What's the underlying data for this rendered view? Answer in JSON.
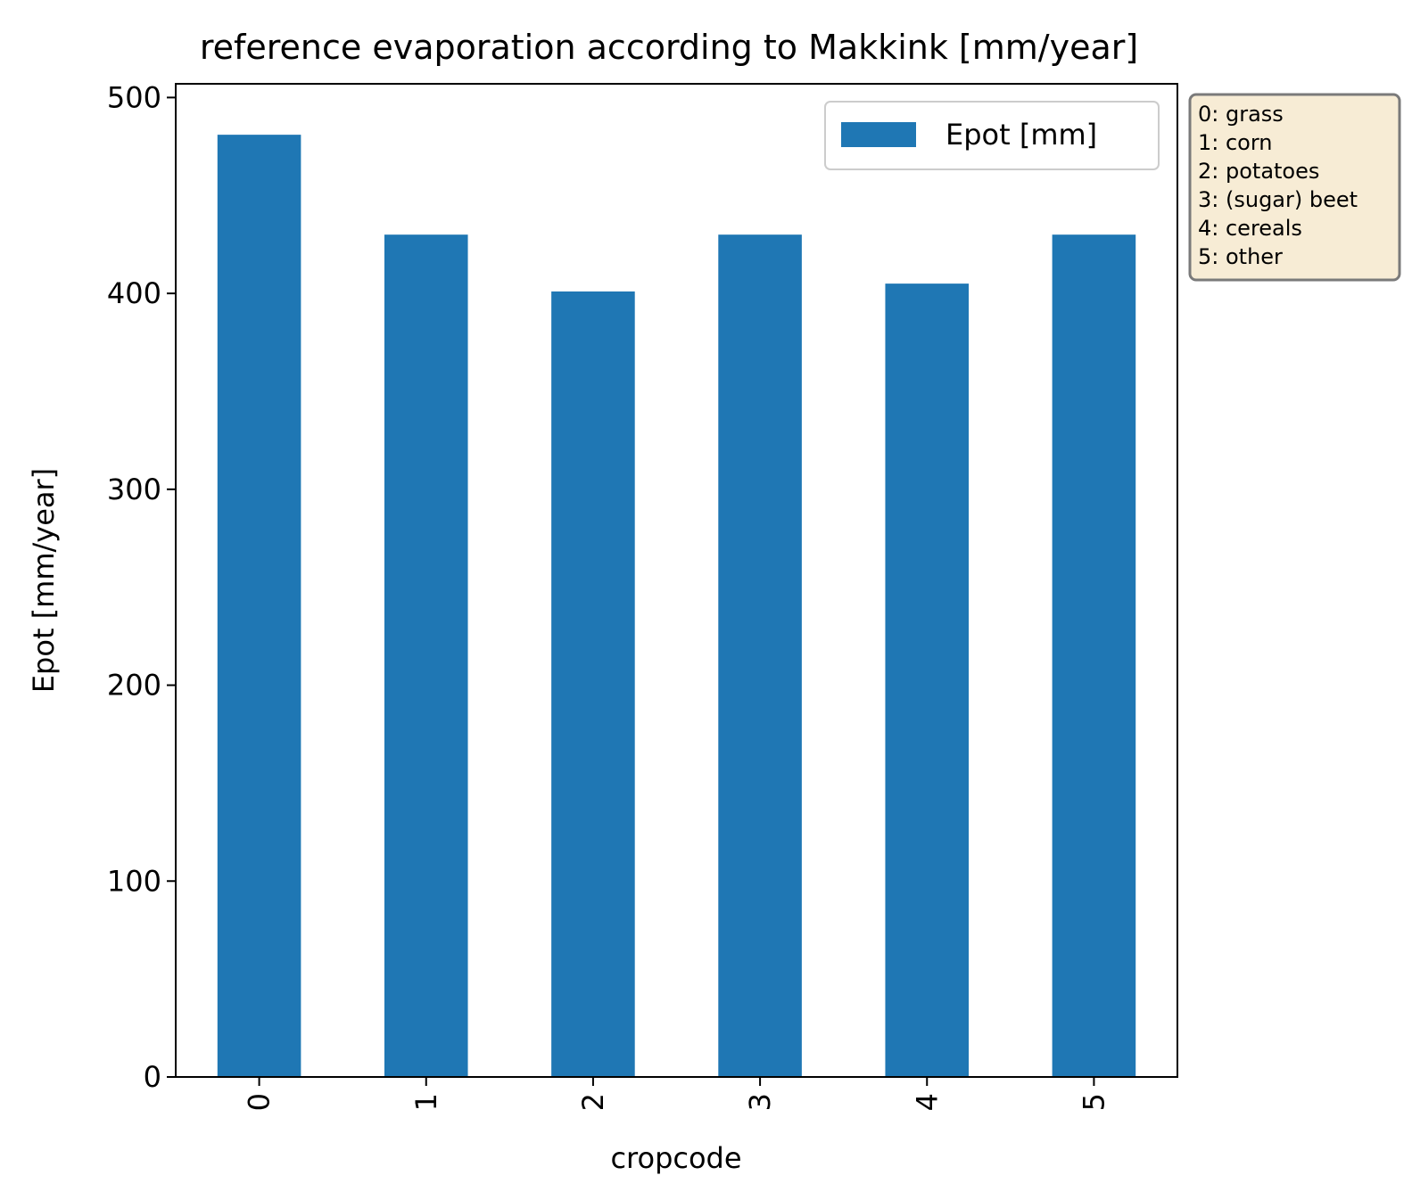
{
  "chart_data": {
    "type": "bar",
    "title": "reference evaporation according to Makkink [mm/year]",
    "xlabel": "cropcode",
    "ylabel": "Epot [mm/year]",
    "categories": [
      "0",
      "1",
      "2",
      "3",
      "4",
      "5"
    ],
    "series": [
      {
        "name": "Epot [mm]",
        "values": [
          481,
          430,
          401,
          430,
          405,
          430
        ]
      }
    ],
    "ylim": [
      0,
      507
    ],
    "yticks": [
      "0",
      "100",
      "200",
      "300",
      "400",
      "500"
    ],
    "legend": "upper right",
    "grid": false,
    "bar_color": "#1f77b4",
    "annotation": {
      "lines": [
        "0: grass",
        "1: corn",
        "2: potatoes",
        "3: (sugar) beet",
        "4: cereals",
        "5: other"
      ],
      "background": "#f7ecd5",
      "border": "#7a7a7a"
    }
  }
}
